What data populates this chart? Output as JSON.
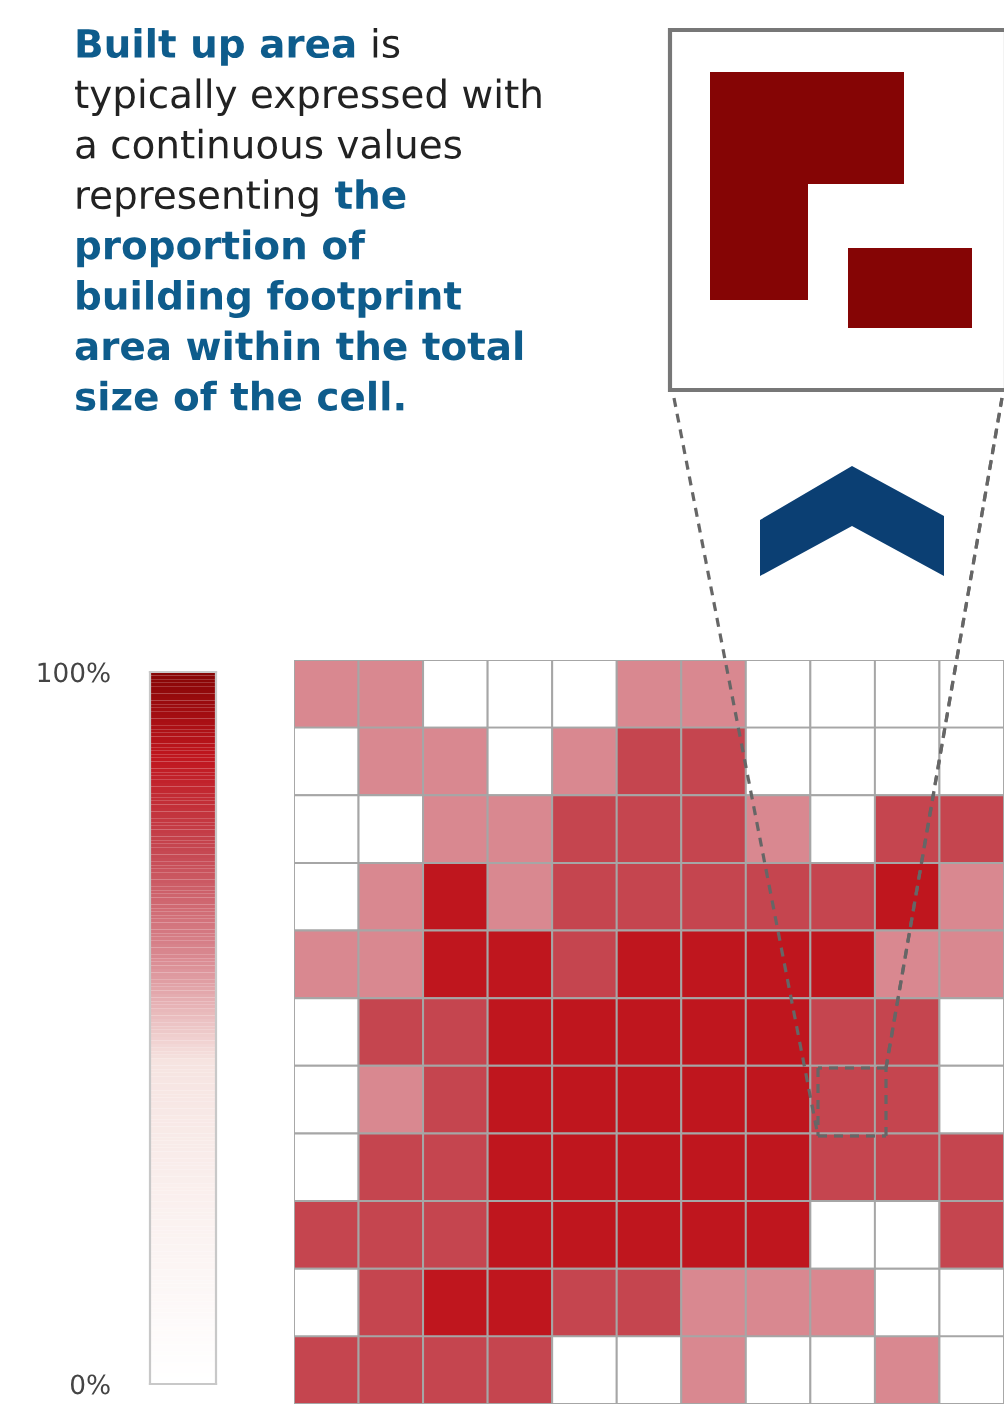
{
  "chart_data": {
    "type": "heatmap",
    "annotations": [
      "Built up area",
      "is typically expressed with a continuous values representing",
      "the proportion of building footprint area within the total size of the cell."
    ],
    "categories": [
      null,
      null,
      null,
      null,
      null,
      null,
      null,
      null,
      null,
      null,
      null
    ],
    "y_categories": [
      null,
      null,
      null,
      null,
      null,
      null,
      null,
      null,
      null,
      null,
      null
    ],
    "cells": [
      [
        60,
        60,
        0,
        0,
        0,
        60,
        60,
        0,
        0,
        0,
        0
      ],
      [
        0,
        60,
        60,
        0,
        60,
        75,
        75,
        0,
        0,
        0,
        0
      ],
      [
        0,
        0,
        60,
        60,
        75,
        75,
        75,
        60,
        0,
        75,
        75
      ],
      [
        0,
        60,
        88,
        60,
        75,
        75,
        75,
        75,
        75,
        88,
        60
      ],
      [
        60,
        60,
        88,
        88,
        75,
        88,
        88,
        88,
        88,
        60,
        60
      ],
      [
        0,
        75,
        75,
        88,
        88,
        88,
        88,
        88,
        75,
        75,
        0
      ],
      [
        0,
        60,
        75,
        88,
        88,
        88,
        88,
        88,
        75,
        75,
        0
      ],
      [
        0,
        75,
        75,
        88,
        88,
        88,
        88,
        88,
        75,
        75,
        75
      ],
      [
        75,
        75,
        75,
        88,
        88,
        88,
        88,
        88,
        0,
        0,
        75
      ],
      [
        0,
        75,
        88,
        88,
        75,
        75,
        60,
        60,
        60,
        0,
        0
      ],
      [
        75,
        75,
        75,
        75,
        0,
        0,
        60,
        0,
        0,
        60,
        0
      ]
    ],
    "clim": [
      0,
      100
    ],
    "cticks": [
      {
        "value": 0,
        "label": "0%"
      },
      {
        "value": 100,
        "label": "100%"
      }
    ]
  }
}
